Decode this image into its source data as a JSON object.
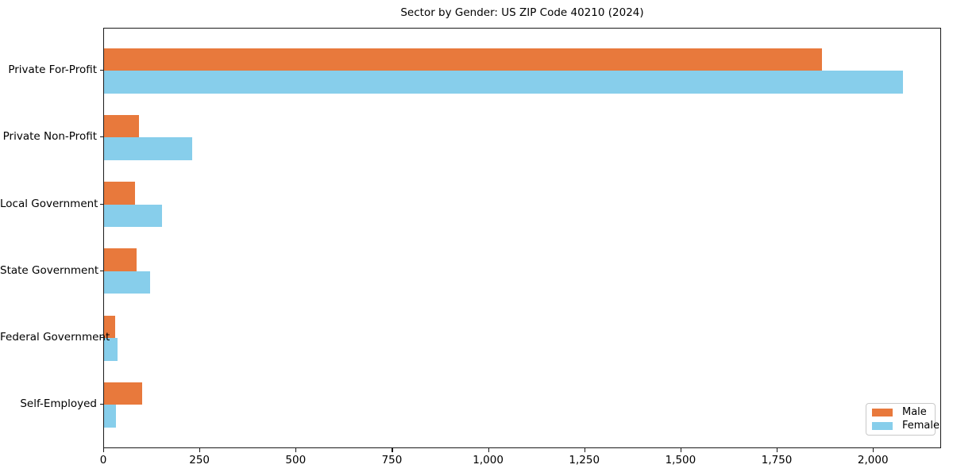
{
  "chart_data": {
    "type": "bar",
    "orientation": "horizontal",
    "title": "Sector by Gender: US ZIP Code 40210 (2024)",
    "categories": [
      "Private For-Profit",
      "Private Non-Profit",
      "Local Government",
      "State Government",
      "Federal Government",
      "Self-Employed"
    ],
    "series": [
      {
        "name": "Male",
        "color": "#E8793C",
        "values": [
          1865,
          90,
          80,
          85,
          28,
          100
        ]
      },
      {
        "name": "Female",
        "color": "#87CEEB",
        "values": [
          2075,
          230,
          150,
          120,
          35,
          30
        ]
      }
    ],
    "xlabel": "",
    "ylabel": "",
    "xlim": [
      0,
      2177
    ],
    "xticks": [
      0,
      250,
      500,
      750,
      1000,
      1250,
      1500,
      1750,
      2000
    ],
    "xtick_labels": [
      "0",
      "250",
      "500",
      "750",
      "1,000",
      "1,250",
      "1,500",
      "1,750",
      "2,000"
    ],
    "legend": {
      "position": "lower-right",
      "entries": [
        "Male",
        "Female"
      ]
    },
    "grid": false,
    "axis_color": "#1a1a1a",
    "background_color": "#ffffff"
  }
}
